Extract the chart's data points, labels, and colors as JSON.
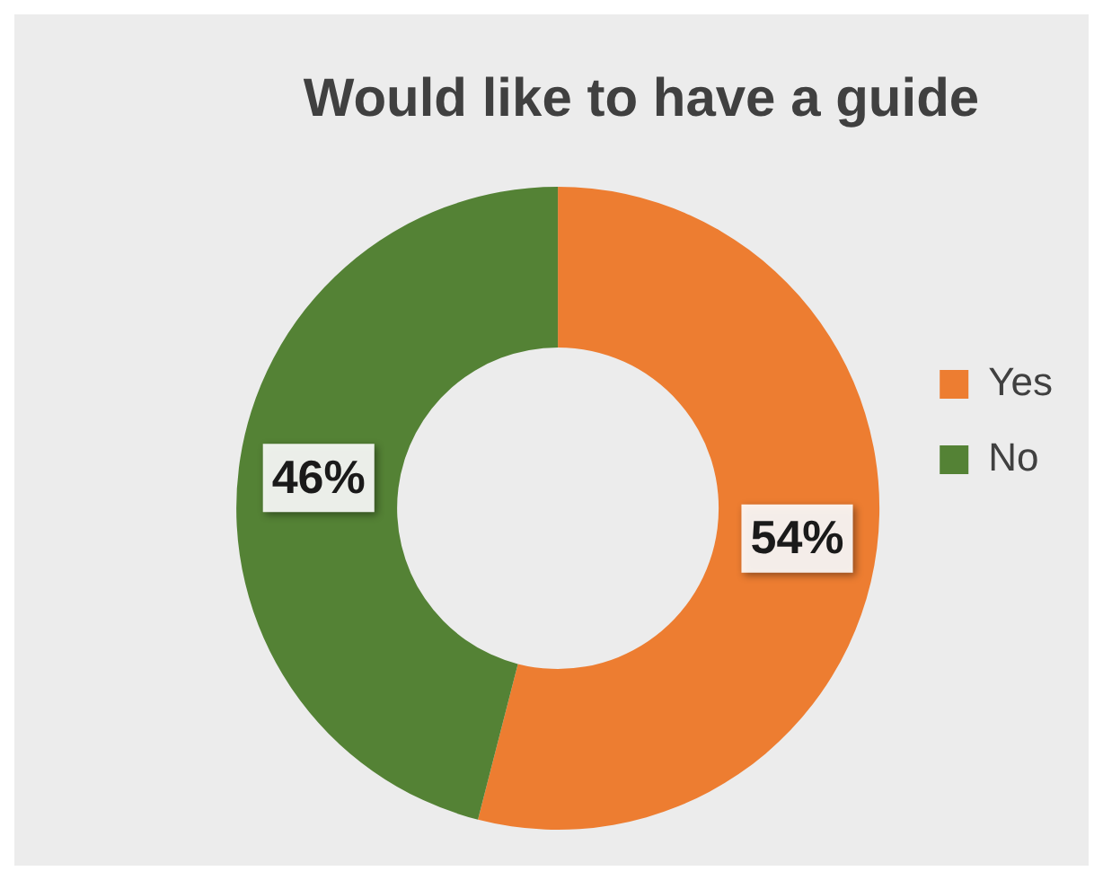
{
  "chart_data": {
    "type": "donut",
    "title": "Would like to have a guide",
    "categories": [
      "Yes",
      "No"
    ],
    "values": [
      54,
      46
    ],
    "colors": [
      "#ed7d31",
      "#548235"
    ],
    "value_labels": [
      "54%",
      "46%"
    ],
    "legend": "right"
  }
}
